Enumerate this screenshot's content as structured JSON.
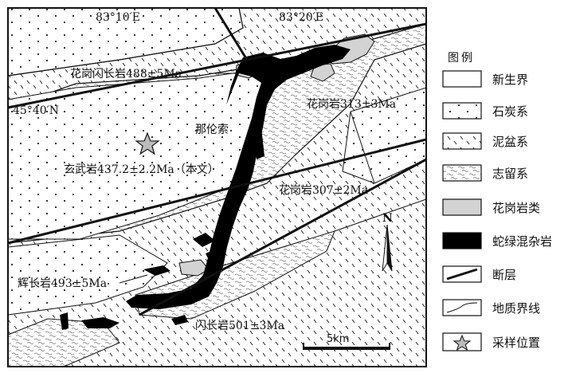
{
  "map": {
    "coords": {
      "lon_a": "83°10′E",
      "lon_b": "83°20′E",
      "lat": "45°40′N"
    },
    "place": "那伦索",
    "samples": [
      {
        "label": "花岗闪长岩488±5Ma"
      },
      {
        "label": "花岗岩313±3Ma"
      },
      {
        "label": "玄武岩437.2±2.2Ma（本文）"
      },
      {
        "label": "花岗岩307±2Ma"
      },
      {
        "label": "辉长岩493±5Ma"
      },
      {
        "label": "闪长岩501±3Ma"
      }
    ],
    "north": "N",
    "scale": "5km"
  },
  "legend": {
    "title": "图例",
    "items": [
      {
        "key": "cenozoic",
        "label": "新生界"
      },
      {
        "key": "carboniferous",
        "label": "石炭系"
      },
      {
        "key": "devonian",
        "label": "泥盆系"
      },
      {
        "key": "silurian",
        "label": "志留系"
      },
      {
        "key": "granite",
        "label": "花岗岩类"
      },
      {
        "key": "ophiolite",
        "label": "蛇绿混杂岩"
      },
      {
        "key": "fault",
        "label": "断层"
      },
      {
        "key": "boundary",
        "label": "地质界线"
      },
      {
        "key": "sample",
        "label": "采样位置"
      }
    ]
  },
  "colors": {
    "ink": "#111111",
    "granite": "#d3d3d3",
    "ophiolite": "#000000",
    "background": "#ffffff"
  }
}
